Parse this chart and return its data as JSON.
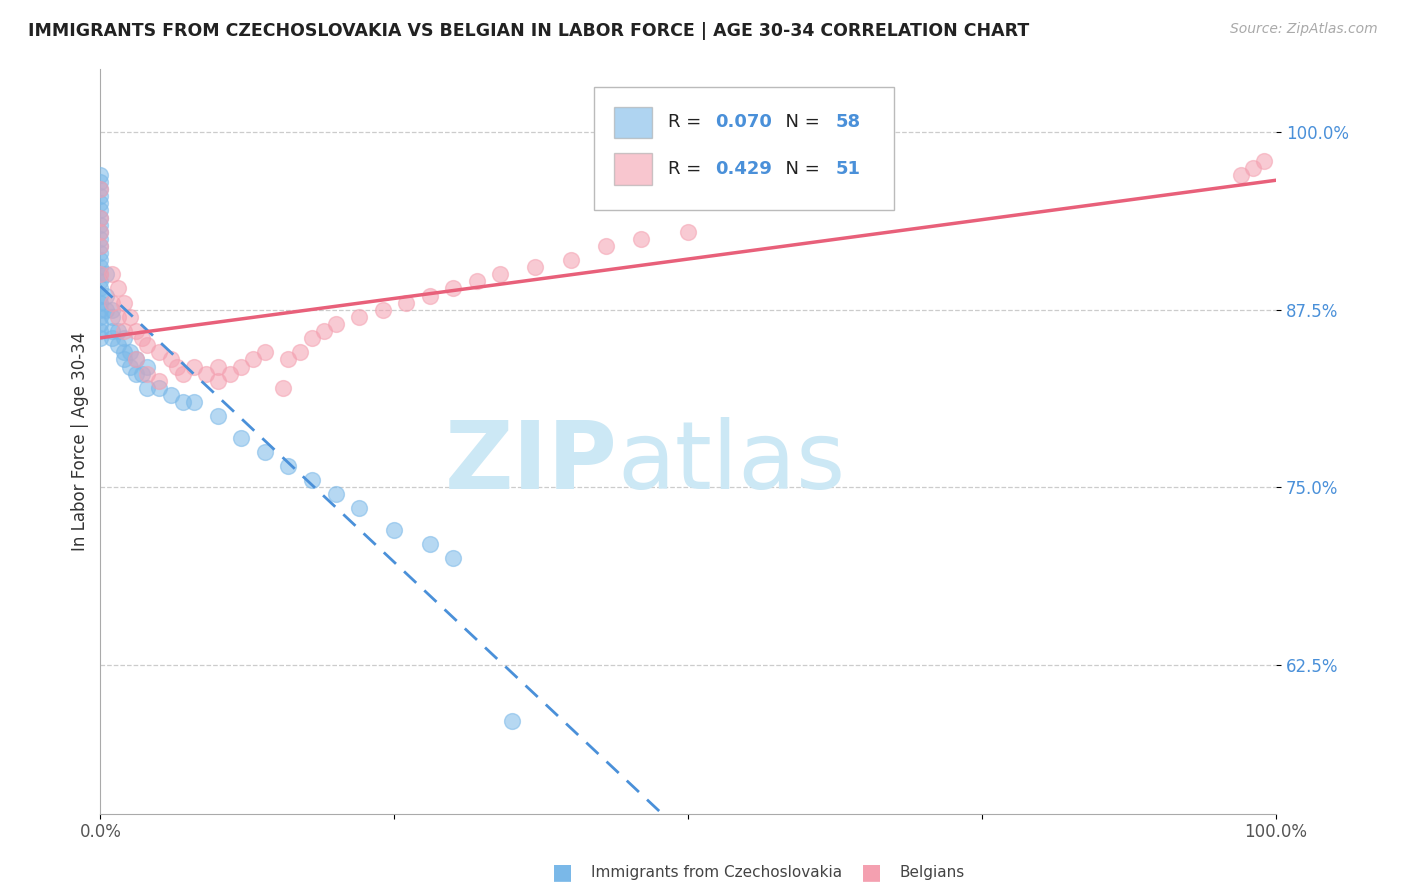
{
  "title": "IMMIGRANTS FROM CZECHOSLOVAKIA VS BELGIAN IN LABOR FORCE | AGE 30-34 CORRELATION CHART",
  "source": "Source: ZipAtlas.com",
  "ylabel": "In Labor Force | Age 30-34",
  "xlim": [
    0.0,
    1.0
  ],
  "ylim": [
    0.52,
    1.045
  ],
  "xtick_positions": [
    0.0,
    0.25,
    0.5,
    0.75,
    1.0
  ],
  "xtick_labels": [
    "0.0%",
    "",
    "",
    "",
    "100.0%"
  ],
  "ytick_positions": [
    0.625,
    0.75,
    0.875,
    1.0
  ],
  "ytick_labels": [
    "62.5%",
    "75.0%",
    "87.5%",
    "100.0%"
  ],
  "blue_R": 0.07,
  "blue_N": 58,
  "pink_R": 0.429,
  "pink_N": 51,
  "blue_color": "#7ab8e8",
  "pink_color": "#f4a0b0",
  "legend_label_blue": "Immigrants from Czechoslovakia",
  "legend_label_pink": "Belgians",
  "blue_scatter_x": [
    0.0,
    0.0,
    0.0,
    0.0,
    0.0,
    0.0,
    0.0,
    0.0,
    0.0,
    0.0,
    0.0,
    0.0,
    0.0,
    0.0,
    0.0,
    0.0,
    0.0,
    0.0,
    0.0,
    0.0,
    0.0,
    0.0,
    0.0,
    0.0,
    0.005,
    0.005,
    0.005,
    0.01,
    0.01,
    0.01,
    0.01,
    0.015,
    0.015,
    0.02,
    0.02,
    0.02,
    0.025,
    0.025,
    0.03,
    0.03,
    0.035,
    0.04,
    0.04,
    0.05,
    0.06,
    0.07,
    0.08,
    0.1,
    0.12,
    0.14,
    0.16,
    0.18,
    0.2,
    0.22,
    0.25,
    0.28,
    0.3,
    0.35
  ],
  "blue_scatter_y": [
    0.97,
    0.965,
    0.96,
    0.955,
    0.95,
    0.945,
    0.94,
    0.935,
    0.93,
    0.925,
    0.92,
    0.915,
    0.91,
    0.905,
    0.9,
    0.895,
    0.89,
    0.885,
    0.88,
    0.875,
    0.87,
    0.865,
    0.86,
    0.855,
    0.9,
    0.885,
    0.875,
    0.875,
    0.87,
    0.86,
    0.855,
    0.86,
    0.85,
    0.855,
    0.845,
    0.84,
    0.845,
    0.835,
    0.84,
    0.83,
    0.83,
    0.835,
    0.82,
    0.82,
    0.815,
    0.81,
    0.81,
    0.8,
    0.785,
    0.775,
    0.765,
    0.755,
    0.745,
    0.735,
    0.72,
    0.71,
    0.7,
    0.585
  ],
  "pink_scatter_x": [
    0.0,
    0.0,
    0.0,
    0.0,
    0.0,
    0.01,
    0.01,
    0.015,
    0.015,
    0.02,
    0.02,
    0.025,
    0.03,
    0.03,
    0.035,
    0.04,
    0.04,
    0.05,
    0.05,
    0.06,
    0.065,
    0.07,
    0.08,
    0.09,
    0.1,
    0.1,
    0.11,
    0.12,
    0.13,
    0.14,
    0.155,
    0.16,
    0.17,
    0.18,
    0.19,
    0.2,
    0.22,
    0.24,
    0.26,
    0.28,
    0.3,
    0.32,
    0.34,
    0.37,
    0.4,
    0.43,
    0.46,
    0.5,
    0.97,
    0.98,
    0.99
  ],
  "pink_scatter_y": [
    0.96,
    0.94,
    0.93,
    0.92,
    0.9,
    0.9,
    0.88,
    0.89,
    0.87,
    0.88,
    0.86,
    0.87,
    0.86,
    0.84,
    0.855,
    0.85,
    0.83,
    0.845,
    0.825,
    0.84,
    0.835,
    0.83,
    0.835,
    0.83,
    0.835,
    0.825,
    0.83,
    0.835,
    0.84,
    0.845,
    0.82,
    0.84,
    0.845,
    0.855,
    0.86,
    0.865,
    0.87,
    0.875,
    0.88,
    0.885,
    0.89,
    0.895,
    0.9,
    0.905,
    0.91,
    0.92,
    0.925,
    0.93,
    0.97,
    0.975,
    0.98
  ],
  "watermark_top": "ZIP",
  "watermark_bottom": "atlas",
  "watermark_color": "#cce8f5",
  "grid_color": "#cccccc",
  "spine_color": "#aaaaaa"
}
